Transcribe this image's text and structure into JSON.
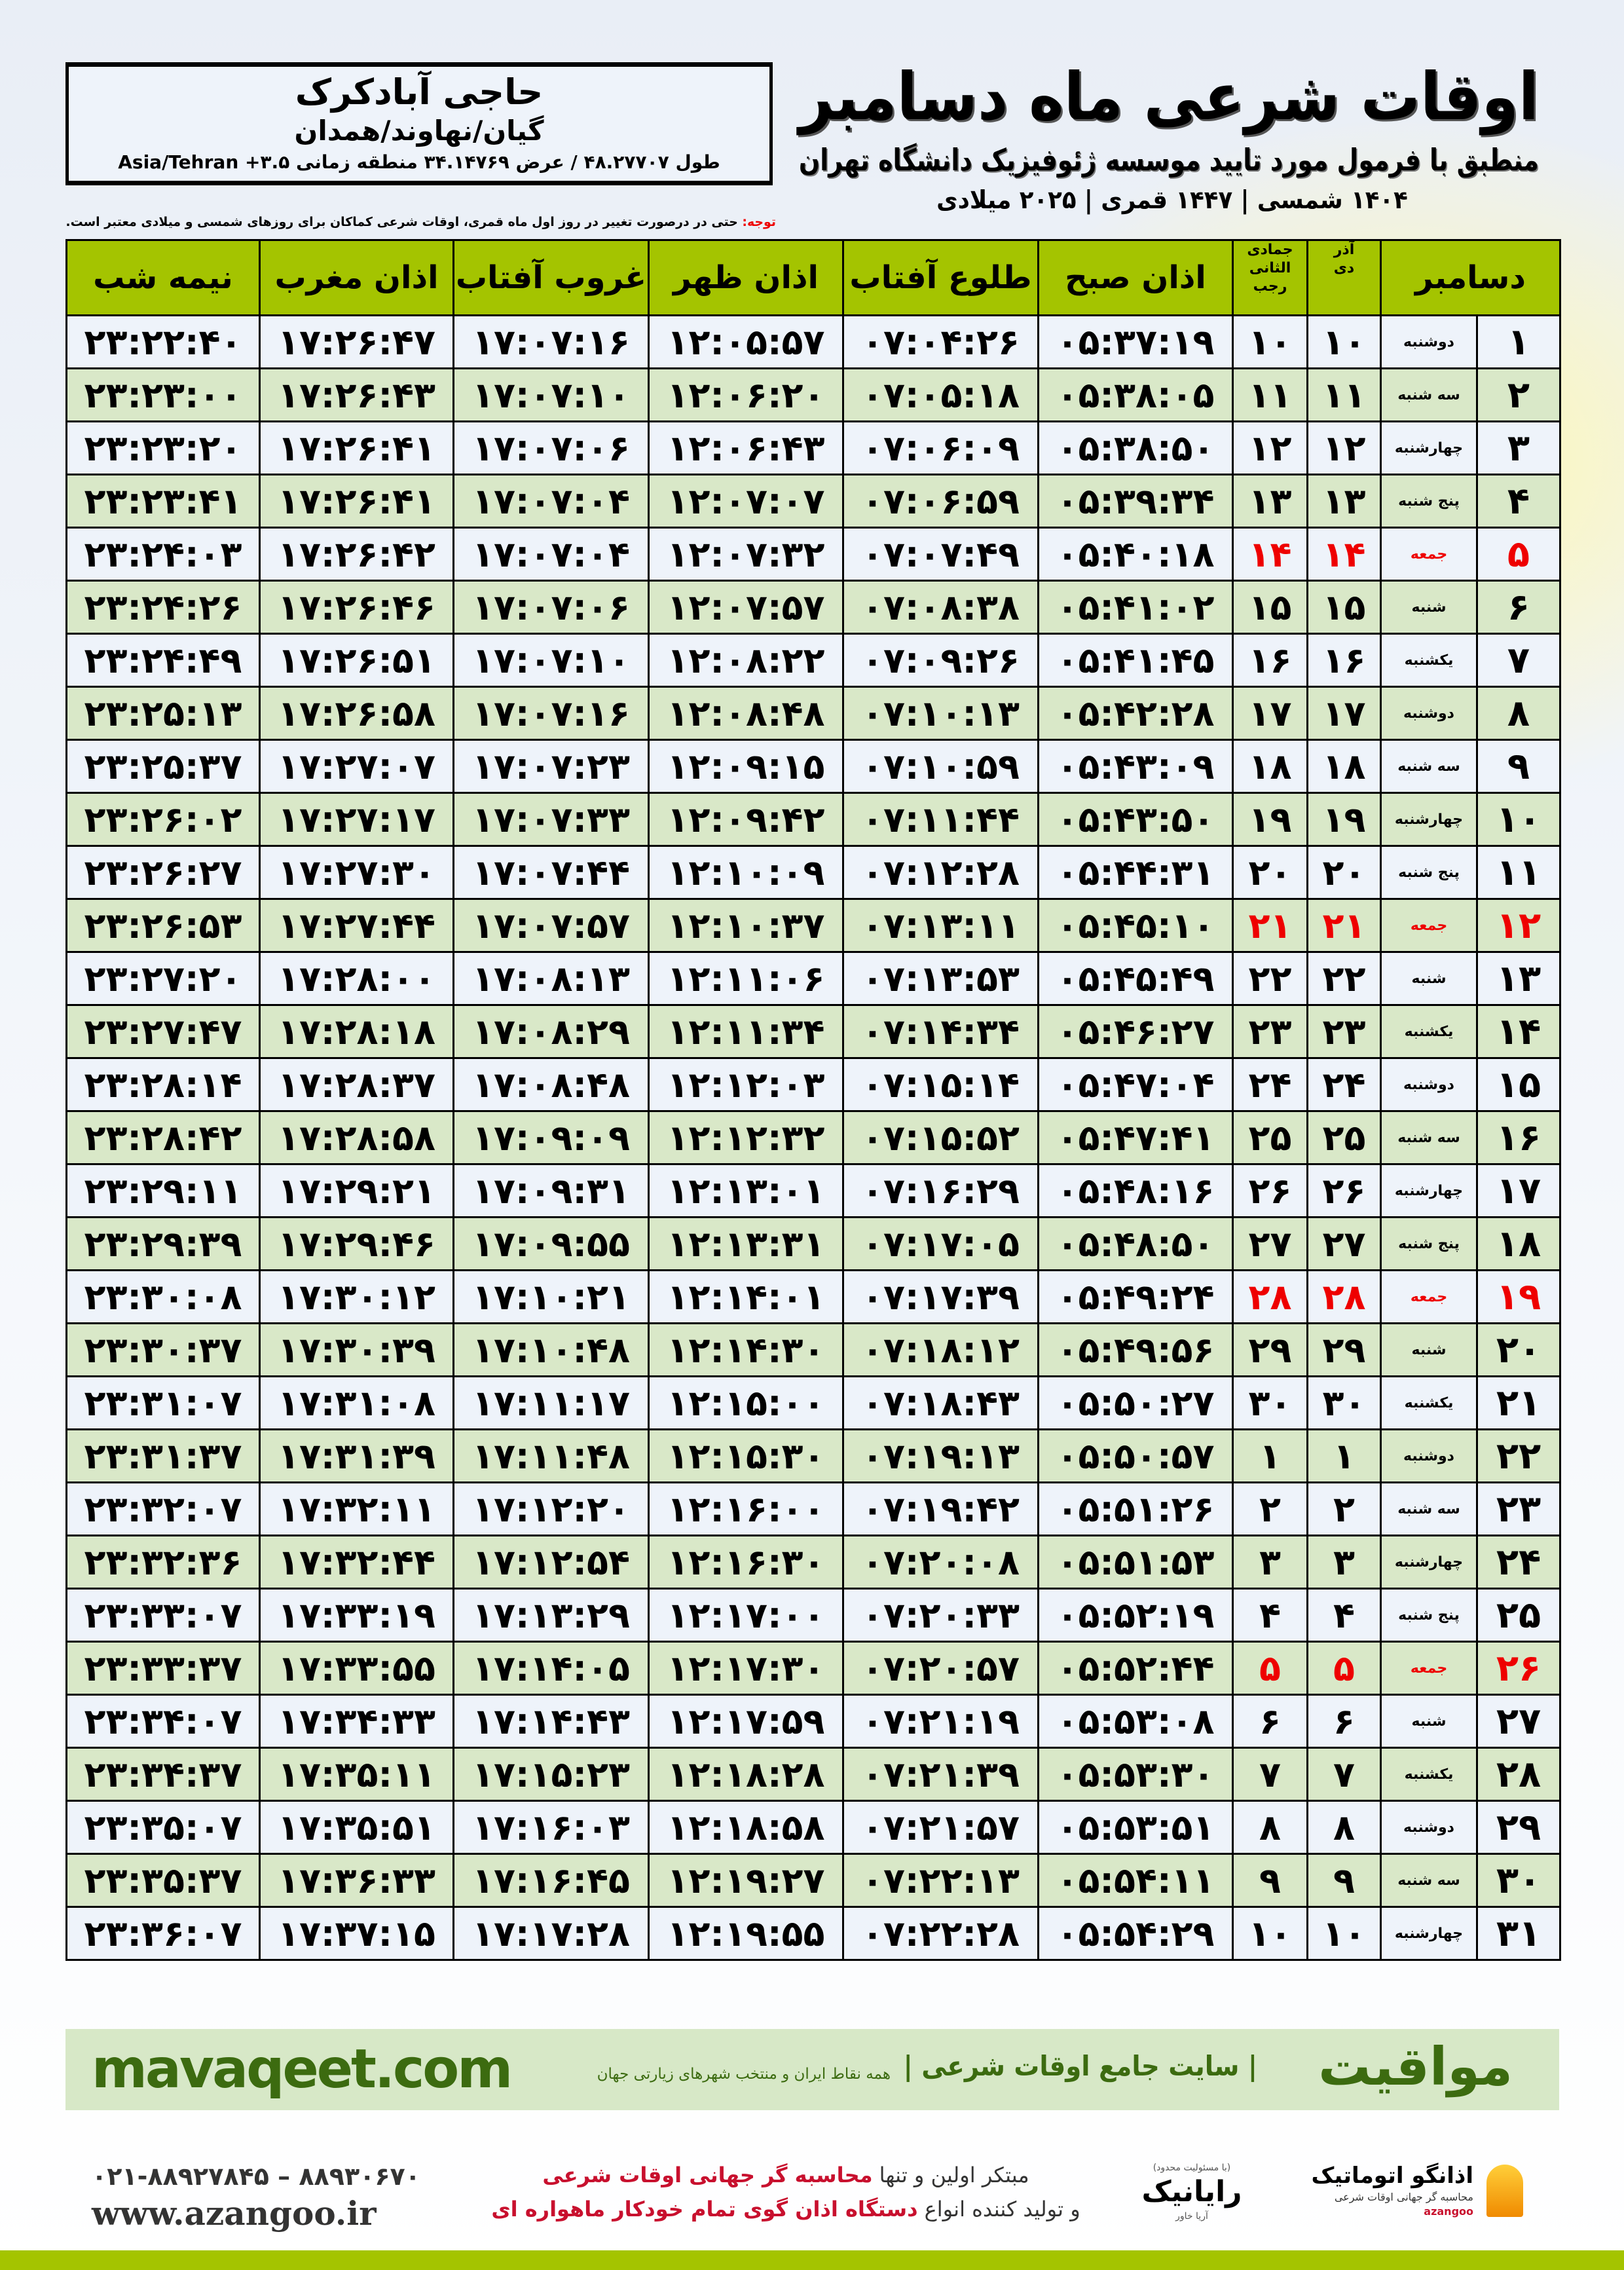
{
  "header": {
    "title": "اوقات شرعی ماه دسامبر",
    "subtitle": "منطبق با فرمول مورد تایید موسسه ژئوفیزیک دانشگاه تهران",
    "dates": "۱۴۰۴ شمسی | ۱۴۴۷ قمری | ۲۰۲۵ میلادی"
  },
  "location": {
    "name": "حاجی آبادکرک",
    "region": "گیان/نهاوند/همدان",
    "coords": "طول ۴۸.۲۷۷۰۷ / عرض ۳۴.۱۴۷۶۹ منطقه زمانی ۳.۵+ Asia/Tehran"
  },
  "note": {
    "label": "توجه:",
    "text": " حتی در درصورت تغییر در روز اول ماه قمری، اوقات شرعی کماکان برای روزهای شمسی و میلادی معتبر است."
  },
  "colors": {
    "header_green": "#a4c400",
    "row_green": "#d9e8c8",
    "row_light": "#eef3fa",
    "friday_red": "#e00000",
    "brand_green": "#3c6b10"
  },
  "table": {
    "columns": {
      "day": "دسامبر",
      "shamsi_month_top": "آذر",
      "shamsi_month": "دی",
      "qamari_month_top": "جمادی الثانی",
      "qamari_month": "رجب",
      "sobh": "اذان صبح",
      "tolu": "طلوع آفتاب",
      "zohr": "اذان ظهر",
      "ghorub": "غروب آفتاب",
      "maghrib": "اذان مغرب",
      "nimeshab": "نیمه شب"
    },
    "rows": [
      {
        "day": "۱",
        "weekday": "دوشنبه",
        "dey": "۱۰",
        "rajab": "۱۰",
        "sobh": "۰۵:۳۷:۱۹",
        "tolu": "۰۷:۰۴:۲۶",
        "zohr": "۱۲:۰۵:۵۷",
        "ghorub": "۱۷:۰۷:۱۶",
        "maghrib": "۱۷:۲۶:۴۷",
        "nimeshab": "۲۳:۲۲:۴۰",
        "friday": false
      },
      {
        "day": "۲",
        "weekday": "سه شنبه",
        "dey": "۱۱",
        "rajab": "۱۱",
        "sobh": "۰۵:۳۸:۰۵",
        "tolu": "۰۷:۰۵:۱۸",
        "zohr": "۱۲:۰۶:۲۰",
        "ghorub": "۱۷:۰۷:۱۰",
        "maghrib": "۱۷:۲۶:۴۳",
        "nimeshab": "۲۳:۲۳:۰۰",
        "friday": false
      },
      {
        "day": "۳",
        "weekday": "چهارشنبه",
        "dey": "۱۲",
        "rajab": "۱۲",
        "sobh": "۰۵:۳۸:۵۰",
        "tolu": "۰۷:۰۶:۰۹",
        "zohr": "۱۲:۰۶:۴۳",
        "ghorub": "۱۷:۰۷:۰۶",
        "maghrib": "۱۷:۲۶:۴۱",
        "nimeshab": "۲۳:۲۳:۲۰",
        "friday": false
      },
      {
        "day": "۴",
        "weekday": "پنج شنبه",
        "dey": "۱۳",
        "rajab": "۱۳",
        "sobh": "۰۵:۳۹:۳۴",
        "tolu": "۰۷:۰۶:۵۹",
        "zohr": "۱۲:۰۷:۰۷",
        "ghorub": "۱۷:۰۷:۰۴",
        "maghrib": "۱۷:۲۶:۴۱",
        "nimeshab": "۲۳:۲۳:۴۱",
        "friday": false
      },
      {
        "day": "۵",
        "weekday": "جمعه",
        "dey": "۱۴",
        "rajab": "۱۴",
        "sobh": "۰۵:۴۰:۱۸",
        "tolu": "۰۷:۰۷:۴۹",
        "zohr": "۱۲:۰۷:۳۲",
        "ghorub": "۱۷:۰۷:۰۴",
        "maghrib": "۱۷:۲۶:۴۲",
        "nimeshab": "۲۳:۲۴:۰۳",
        "friday": true
      },
      {
        "day": "۶",
        "weekday": "شنبه",
        "dey": "۱۵",
        "rajab": "۱۵",
        "sobh": "۰۵:۴۱:۰۲",
        "tolu": "۰۷:۰۸:۳۸",
        "zohr": "۱۲:۰۷:۵۷",
        "ghorub": "۱۷:۰۷:۰۶",
        "maghrib": "۱۷:۲۶:۴۶",
        "nimeshab": "۲۳:۲۴:۲۶",
        "friday": false
      },
      {
        "day": "۷",
        "weekday": "یکشنبه",
        "dey": "۱۶",
        "rajab": "۱۶",
        "sobh": "۰۵:۴۱:۴۵",
        "tolu": "۰۷:۰۹:۲۶",
        "zohr": "۱۲:۰۸:۲۲",
        "ghorub": "۱۷:۰۷:۱۰",
        "maghrib": "۱۷:۲۶:۵۱",
        "nimeshab": "۲۳:۲۴:۴۹",
        "friday": false
      },
      {
        "day": "۸",
        "weekday": "دوشنبه",
        "dey": "۱۷",
        "rajab": "۱۷",
        "sobh": "۰۵:۴۲:۲۸",
        "tolu": "۰۷:۱۰:۱۳",
        "zohr": "۱۲:۰۸:۴۸",
        "ghorub": "۱۷:۰۷:۱۶",
        "maghrib": "۱۷:۲۶:۵۸",
        "nimeshab": "۲۳:۲۵:۱۳",
        "friday": false
      },
      {
        "day": "۹",
        "weekday": "سه شنبه",
        "dey": "۱۸",
        "rajab": "۱۸",
        "sobh": "۰۵:۴۳:۰۹",
        "tolu": "۰۷:۱۰:۵۹",
        "zohr": "۱۲:۰۹:۱۵",
        "ghorub": "۱۷:۰۷:۲۳",
        "maghrib": "۱۷:۲۷:۰۷",
        "nimeshab": "۲۳:۲۵:۳۷",
        "friday": false
      },
      {
        "day": "۱۰",
        "weekday": "چهارشنبه",
        "dey": "۱۹",
        "rajab": "۱۹",
        "sobh": "۰۵:۴۳:۵۰",
        "tolu": "۰۷:۱۱:۴۴",
        "zohr": "۱۲:۰۹:۴۲",
        "ghorub": "۱۷:۰۷:۳۳",
        "maghrib": "۱۷:۲۷:۱۷",
        "nimeshab": "۲۳:۲۶:۰۲",
        "friday": false
      },
      {
        "day": "۱۱",
        "weekday": "پنج شنبه",
        "dey": "۲۰",
        "rajab": "۲۰",
        "sobh": "۰۵:۴۴:۳۱",
        "tolu": "۰۷:۱۲:۲۸",
        "zohr": "۱۲:۱۰:۰۹",
        "ghorub": "۱۷:۰۷:۴۴",
        "maghrib": "۱۷:۲۷:۳۰",
        "nimeshab": "۲۳:۲۶:۲۷",
        "friday": false
      },
      {
        "day": "۱۲",
        "weekday": "جمعه",
        "dey": "۲۱",
        "rajab": "۲۱",
        "sobh": "۰۵:۴۵:۱۰",
        "tolu": "۰۷:۱۳:۱۱",
        "zohr": "۱۲:۱۰:۳۷",
        "ghorub": "۱۷:۰۷:۵۷",
        "maghrib": "۱۷:۲۷:۴۴",
        "nimeshab": "۲۳:۲۶:۵۳",
        "friday": true
      },
      {
        "day": "۱۳",
        "weekday": "شنبه",
        "dey": "۲۲",
        "rajab": "۲۲",
        "sobh": "۰۵:۴۵:۴۹",
        "tolu": "۰۷:۱۳:۵۳",
        "zohr": "۱۲:۱۱:۰۶",
        "ghorub": "۱۷:۰۸:۱۳",
        "maghrib": "۱۷:۲۸:۰۰",
        "nimeshab": "۲۳:۲۷:۲۰",
        "friday": false
      },
      {
        "day": "۱۴",
        "weekday": "یکشنبه",
        "dey": "۲۳",
        "rajab": "۲۳",
        "sobh": "۰۵:۴۶:۲۷",
        "tolu": "۰۷:۱۴:۳۴",
        "zohr": "۱۲:۱۱:۳۴",
        "ghorub": "۱۷:۰۸:۲۹",
        "maghrib": "۱۷:۲۸:۱۸",
        "nimeshab": "۲۳:۲۷:۴۷",
        "friday": false
      },
      {
        "day": "۱۵",
        "weekday": "دوشنبه",
        "dey": "۲۴",
        "rajab": "۲۴",
        "sobh": "۰۵:۴۷:۰۴",
        "tolu": "۰۷:۱۵:۱۴",
        "zohr": "۱۲:۱۲:۰۳",
        "ghorub": "۱۷:۰۸:۴۸",
        "maghrib": "۱۷:۲۸:۳۷",
        "nimeshab": "۲۳:۲۸:۱۴",
        "friday": false
      },
      {
        "day": "۱۶",
        "weekday": "سه شنبه",
        "dey": "۲۵",
        "rajab": "۲۵",
        "sobh": "۰۵:۴۷:۴۱",
        "tolu": "۰۷:۱۵:۵۲",
        "zohr": "۱۲:۱۲:۳۲",
        "ghorub": "۱۷:۰۹:۰۹",
        "maghrib": "۱۷:۲۸:۵۸",
        "nimeshab": "۲۳:۲۸:۴۲",
        "friday": false
      },
      {
        "day": "۱۷",
        "weekday": "چهارشنبه",
        "dey": "۲۶",
        "rajab": "۲۶",
        "sobh": "۰۵:۴۸:۱۶",
        "tolu": "۰۷:۱۶:۲۹",
        "zohr": "۱۲:۱۳:۰۱",
        "ghorub": "۱۷:۰۹:۳۱",
        "maghrib": "۱۷:۲۹:۲۱",
        "nimeshab": "۲۳:۲۹:۱۱",
        "friday": false
      },
      {
        "day": "۱۸",
        "weekday": "پنج شنبه",
        "dey": "۲۷",
        "rajab": "۲۷",
        "sobh": "۰۵:۴۸:۵۰",
        "tolu": "۰۷:۱۷:۰۵",
        "zohr": "۱۲:۱۳:۳۱",
        "ghorub": "۱۷:۰۹:۵۵",
        "maghrib": "۱۷:۲۹:۴۶",
        "nimeshab": "۲۳:۲۹:۳۹",
        "friday": false
      },
      {
        "day": "۱۹",
        "weekday": "جمعه",
        "dey": "۲۸",
        "rajab": "۲۸",
        "sobh": "۰۵:۴۹:۲۴",
        "tolu": "۰۷:۱۷:۳۹",
        "zohr": "۱۲:۱۴:۰۱",
        "ghorub": "۱۷:۱۰:۲۱",
        "maghrib": "۱۷:۳۰:۱۲",
        "nimeshab": "۲۳:۳۰:۰۸",
        "friday": true
      },
      {
        "day": "۲۰",
        "weekday": "شنبه",
        "dey": "۲۹",
        "rajab": "۲۹",
        "sobh": "۰۵:۴۹:۵۶",
        "tolu": "۰۷:۱۸:۱۲",
        "zohr": "۱۲:۱۴:۳۰",
        "ghorub": "۱۷:۱۰:۴۸",
        "maghrib": "۱۷:۳۰:۳۹",
        "nimeshab": "۲۳:۳۰:۳۷",
        "friday": false
      },
      {
        "day": "۲۱",
        "weekday": "یکشنبه",
        "dey": "۳۰",
        "rajab": "۳۰",
        "sobh": "۰۵:۵۰:۲۷",
        "tolu": "۰۷:۱۸:۴۳",
        "zohr": "۱۲:۱۵:۰۰",
        "ghorub": "۱۷:۱۱:۱۷",
        "maghrib": "۱۷:۳۱:۰۸",
        "nimeshab": "۲۳:۳۱:۰۷",
        "friday": false
      },
      {
        "day": "۲۲",
        "weekday": "دوشنبه",
        "dey": "۱",
        "rajab": "۱",
        "sobh": "۰۵:۵۰:۵۷",
        "tolu": "۰۷:۱۹:۱۳",
        "zohr": "۱۲:۱۵:۳۰",
        "ghorub": "۱۷:۱۱:۴۸",
        "maghrib": "۱۷:۳۱:۳۹",
        "nimeshab": "۲۳:۳۱:۳۷",
        "friday": false
      },
      {
        "day": "۲۳",
        "weekday": "سه شنبه",
        "dey": "۲",
        "rajab": "۲",
        "sobh": "۰۵:۵۱:۲۶",
        "tolu": "۰۷:۱۹:۴۲",
        "zohr": "۱۲:۱۶:۰۰",
        "ghorub": "۱۷:۱۲:۲۰",
        "maghrib": "۱۷:۳۲:۱۱",
        "nimeshab": "۲۳:۳۲:۰۷",
        "friday": false
      },
      {
        "day": "۲۴",
        "weekday": "چهارشنبه",
        "dey": "۳",
        "rajab": "۳",
        "sobh": "۰۵:۵۱:۵۳",
        "tolu": "۰۷:۲۰:۰۸",
        "zohr": "۱۲:۱۶:۳۰",
        "ghorub": "۱۷:۱۲:۵۴",
        "maghrib": "۱۷:۳۲:۴۴",
        "nimeshab": "۲۳:۳۲:۳۶",
        "friday": false
      },
      {
        "day": "۲۵",
        "weekday": "پنج شنبه",
        "dey": "۴",
        "rajab": "۴",
        "sobh": "۰۵:۵۲:۱۹",
        "tolu": "۰۷:۲۰:۳۳",
        "zohr": "۱۲:۱۷:۰۰",
        "ghorub": "۱۷:۱۳:۲۹",
        "maghrib": "۱۷:۳۳:۱۹",
        "nimeshab": "۲۳:۳۳:۰۷",
        "friday": false
      },
      {
        "day": "۲۶",
        "weekday": "جمعه",
        "dey": "۵",
        "rajab": "۵",
        "sobh": "۰۵:۵۲:۴۴",
        "tolu": "۰۷:۲۰:۵۷",
        "zohr": "۱۲:۱۷:۳۰",
        "ghorub": "۱۷:۱۴:۰۵",
        "maghrib": "۱۷:۳۳:۵۵",
        "nimeshab": "۲۳:۳۳:۳۷",
        "friday": true
      },
      {
        "day": "۲۷",
        "weekday": "شنبه",
        "dey": "۶",
        "rajab": "۶",
        "sobh": "۰۵:۵۳:۰۸",
        "tolu": "۰۷:۲۱:۱۹",
        "zohr": "۱۲:۱۷:۵۹",
        "ghorub": "۱۷:۱۴:۴۳",
        "maghrib": "۱۷:۳۴:۳۳",
        "nimeshab": "۲۳:۳۴:۰۷",
        "friday": false
      },
      {
        "day": "۲۸",
        "weekday": "یکشنبه",
        "dey": "۷",
        "rajab": "۷",
        "sobh": "۰۵:۵۳:۳۰",
        "tolu": "۰۷:۲۱:۳۹",
        "zohr": "۱۲:۱۸:۲۸",
        "ghorub": "۱۷:۱۵:۲۳",
        "maghrib": "۱۷:۳۵:۱۱",
        "nimeshab": "۲۳:۳۴:۳۷",
        "friday": false
      },
      {
        "day": "۲۹",
        "weekday": "دوشنبه",
        "dey": "۸",
        "rajab": "۸",
        "sobh": "۰۵:۵۳:۵۱",
        "tolu": "۰۷:۲۱:۵۷",
        "zohr": "۱۲:۱۸:۵۸",
        "ghorub": "۱۷:۱۶:۰۳",
        "maghrib": "۱۷:۳۵:۵۱",
        "nimeshab": "۲۳:۳۵:۰۷",
        "friday": false
      },
      {
        "day": "۳۰",
        "weekday": "سه شنبه",
        "dey": "۹",
        "rajab": "۹",
        "sobh": "۰۵:۵۴:۱۱",
        "tolu": "۰۷:۲۲:۱۳",
        "zohr": "۱۲:۱۹:۲۷",
        "ghorub": "۱۷:۱۶:۴۵",
        "maghrib": "۱۷:۳۶:۳۳",
        "nimeshab": "۲۳:۳۵:۳۷",
        "friday": false
      },
      {
        "day": "۳۱",
        "weekday": "چهارشنبه",
        "dey": "۱۰",
        "rajab": "۱۰",
        "sobh": "۰۵:۵۴:۲۹",
        "tolu": "۰۷:۲۲:۲۸",
        "zohr": "۱۲:۱۹:۵۵",
        "ghorub": "۱۷:۱۷:۲۸",
        "maghrib": "۱۷:۳۷:۱۵",
        "nimeshab": "۲۳:۳۶:۰۷",
        "friday": false
      }
    ]
  },
  "footer": {
    "site": "mavaqeet.com",
    "brand": "مواقیت",
    "slogan": "| سایت جامع اوقات شرعی |",
    "slogan2": "همه نقاط ایران و منتخب شهرهای زیارتی جهان",
    "phone": "۰۲۱-۸۸۹۲۷۸۴۵ – ۸۸۹۳۰۶۷۰",
    "web": "www.azangoo.ir",
    "promo1_a": "مبتکر اولین و تنها ",
    "promo1_b": "محاسبه گر جهانی اوقات شرعی",
    "promo2_a": "و تولید کننده انواع ",
    "promo2_b": "دستگاه اذان گوی تمام خودکار ماهواره ای",
    "rayanik_small": "(با مسئولیت محدود)",
    "rayanik": "رایانیک",
    "rayanik_sub": "آریا خاور",
    "azangoo_name": "اذانگو اتوماتیک",
    "azangoo_sub": "محاسبه گر جهانی اوقات شرعی",
    "azangoo_en": "azangoo"
  }
}
